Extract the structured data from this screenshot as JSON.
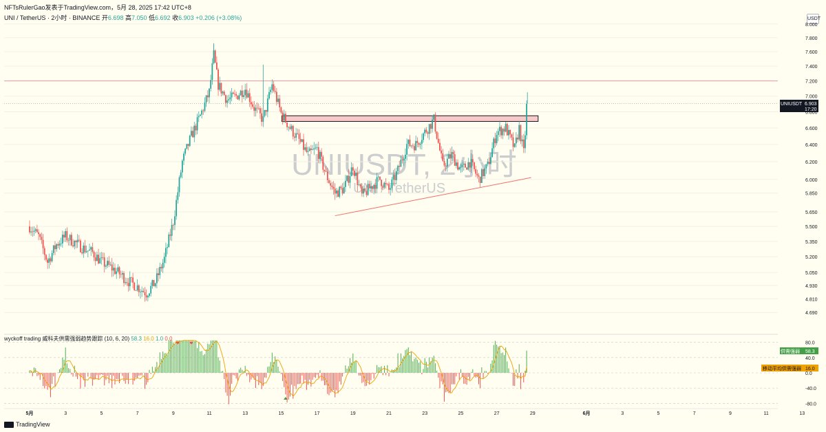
{
  "header": {
    "publish_line": "NFTsRulerGao发表于TradingView.com，5月 28, 2025 17:42 UTC+8",
    "symbol_desc": "UNI / TetherUS · 2小时 · BINANCE",
    "open_label": "开",
    "open": "6.698",
    "high_label": "高",
    "high": "7.050",
    "low_label": "低",
    "low": "6.692",
    "close_label": "收",
    "close": "6.903",
    "change": "+0.206 (+3.08%)"
  },
  "watermark": {
    "title": "UNIUSDT, 2小时",
    "subtitle": "UNI / TetherUS"
  },
  "currency_button": "USDT",
  "price_badge": {
    "symbol": "UNIUSDT",
    "price": "6.903",
    "countdown": "17:20"
  },
  "indicator": {
    "title": "wyckoff trading 威科夫供需强弱趋势跟踪 (10, 6, 20)",
    "v1": "58.3",
    "v2": "16.0",
    "v3": "1.0",
    "v4": "0.0",
    "badge1_label": "供需强弱",
    "badge1_value": "58.3",
    "badge2_label": "移动平均供需强弱",
    "badge2_value": "16.0",
    "yticks": [
      "80.0",
      "40.0",
      "0.0",
      "-40.0",
      "-80.0"
    ]
  },
  "brand": "TradingView",
  "colors": {
    "up": "#26a69a",
    "down": "#ef5350",
    "bg": "#fffef0",
    "band": "#f7cac9",
    "ma": "#f0a000",
    "resistance": "#ef9a9a"
  },
  "chart_data": {
    "type": "candlestick",
    "title": "UNIUSDT, 2小时",
    "ylim": [
      4.55,
      8.05
    ],
    "y_scale": "log",
    "yticks": [
      "8.000",
      "7.800",
      "7.600",
      "7.400",
      "7.200",
      "7.000",
      "6.800",
      "6.600",
      "6.400",
      "6.200",
      "6.000",
      "5.850",
      "5.650",
      "5.500",
      "5.350",
      "5.200",
      "5.050",
      "4.930",
      "4.810",
      "4.690"
    ],
    "xticks": [
      "5月",
      "3",
      "5",
      "7",
      "9",
      "11",
      "13",
      "15",
      "17",
      "19",
      "21",
      "23",
      "25",
      "27",
      "29",
      "6月",
      "3",
      "5",
      "7",
      "9",
      "11",
      "13"
    ],
    "x_dates": [
      "2025-05-01",
      "2025-05-03",
      "2025-05-05",
      "2025-05-07",
      "2025-05-09",
      "2025-05-11",
      "2025-05-13",
      "2025-05-15",
      "2025-05-17",
      "2025-05-19",
      "2025-05-21",
      "2025-05-23",
      "2025-05-25",
      "2025-05-27",
      "2025-05-29",
      "2025-06-01",
      "2025-06-03",
      "2025-06-05",
      "2025-06-07",
      "2025-06-09",
      "2025-06-11",
      "2025-06-13"
    ],
    "close_path": [
      [
        "2025-05-01",
        5.5
      ],
      [
        "2025-05-01T12",
        5.4
      ],
      [
        "2025-05-02",
        5.15
      ],
      [
        "2025-05-02T12",
        5.32
      ],
      [
        "2025-05-03",
        5.4
      ],
      [
        "2025-05-03T12",
        5.34
      ],
      [
        "2025-05-04",
        5.28
      ],
      [
        "2025-05-04T12",
        5.24
      ],
      [
        "2025-05-05",
        5.15
      ],
      [
        "2025-05-05T12",
        5.1
      ],
      [
        "2025-05-06",
        5.04
      ],
      [
        "2025-05-06T12",
        4.97
      ],
      [
        "2025-05-07",
        4.92
      ],
      [
        "2025-05-07T12",
        4.86
      ],
      [
        "2025-05-08",
        4.96
      ],
      [
        "2025-05-08T12",
        5.18
      ],
      [
        "2025-05-09",
        5.55
      ],
      [
        "2025-05-09T12",
        6.2
      ],
      [
        "2025-05-10",
        6.5
      ],
      [
        "2025-05-10T12",
        6.75
      ],
      [
        "2025-05-11",
        7.05
      ],
      [
        "2025-05-11T06",
        7.55
      ],
      [
        "2025-05-11T12",
        7.15
      ],
      [
        "2025-05-12",
        6.95
      ],
      [
        "2025-05-12T12",
        7.0
      ],
      [
        "2025-05-13",
        7.1
      ],
      [
        "2025-05-13T12",
        6.85
      ],
      [
        "2025-05-14",
        6.7
      ],
      [
        "2025-05-14T12",
        7.15
      ],
      [
        "2025-05-15",
        6.78
      ],
      [
        "2025-05-15T12",
        6.6
      ],
      [
        "2025-05-16",
        6.45
      ],
      [
        "2025-05-16T12",
        6.28
      ],
      [
        "2025-05-17",
        6.35
      ],
      [
        "2025-05-17T12",
        6.05
      ],
      [
        "2025-05-18",
        5.85
      ],
      [
        "2025-05-18T12",
        5.9
      ],
      [
        "2025-05-19",
        6.15
      ],
      [
        "2025-05-19T12",
        5.82
      ],
      [
        "2025-05-20",
        5.92
      ],
      [
        "2025-05-20T12",
        6.0
      ],
      [
        "2025-05-21",
        5.88
      ],
      [
        "2025-05-21T12",
        6.1
      ],
      [
        "2025-05-22",
        6.4
      ],
      [
        "2025-05-22T12",
        6.4
      ],
      [
        "2025-05-23",
        6.55
      ],
      [
        "2025-05-23T12",
        6.7
      ],
      [
        "2025-05-24",
        6.15
      ],
      [
        "2025-05-24T12",
        6.28
      ],
      [
        "2025-05-25",
        6.1
      ],
      [
        "2025-05-25T12",
        6.2
      ],
      [
        "2025-05-26",
        6.0
      ],
      [
        "2025-05-26T12",
        6.15
      ],
      [
        "2025-05-27",
        6.55
      ],
      [
        "2025-05-27T12",
        6.6
      ],
      [
        "2025-05-28",
        6.35
      ],
      [
        "2025-05-28T06",
        6.6
      ],
      [
        "2025-05-28T12",
        6.3
      ],
      [
        "2025-05-28T17",
        6.903
      ]
    ],
    "annotations": {
      "resistance_line": 7.2,
      "current_price": 6.903,
      "supply_band": [
        6.68,
        6.75
      ],
      "trendline": [
        [
          "2025-05-18",
          5.61
        ],
        [
          "2025-05-28T22",
          6.02
        ]
      ]
    },
    "oscillator": {
      "name": "供需强弱",
      "ma_name": "移动平均供需强弱",
      "last": 58.3,
      "ma_last": 16.0,
      "ylim": [
        -90,
        90
      ],
      "levels": [
        80,
        40,
        0,
        -40,
        -80
      ]
    }
  }
}
